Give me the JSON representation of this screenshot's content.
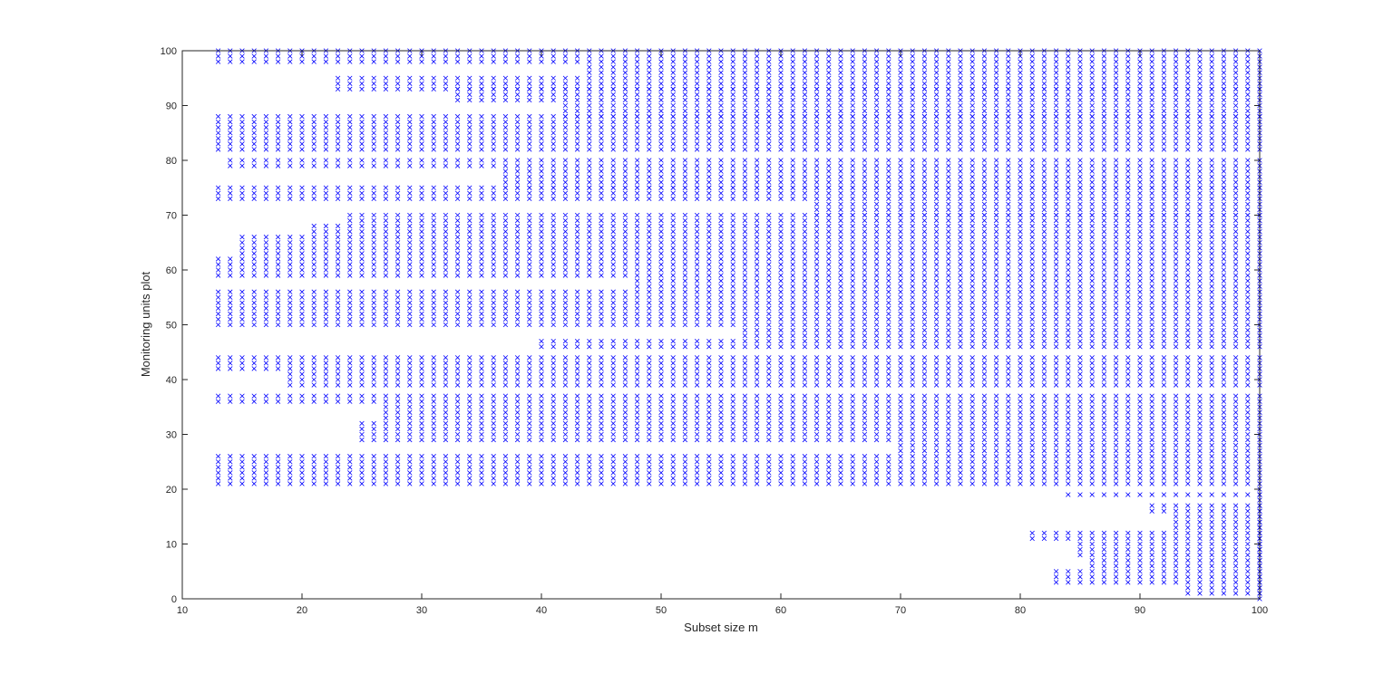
{
  "chart_data": {
    "type": "scatter",
    "title": "",
    "xlabel": "Subset size m",
    "ylabel": "Monitoring units plot",
    "xlim": [
      10,
      100
    ],
    "ylim": [
      0,
      100
    ],
    "xticks": [
      10,
      20,
      30,
      40,
      50,
      60,
      70,
      80,
      90,
      100
    ],
    "yticks": [
      0,
      10,
      20,
      30,
      40,
      50,
      60,
      70,
      80,
      90,
      100
    ],
    "grid": false,
    "marker": "x",
    "marker_color": "#0000ff",
    "axes_color": "#262626",
    "series": [
      {
        "bands": [
          {
            "y": [
              98,
              100
            ],
            "m_from": 13,
            "m_to": 100
          },
          {
            "y": [
              93,
              95
            ],
            "m_from": 23,
            "m_to": 100
          },
          {
            "y": [
              91,
              93
            ],
            "m_from": 33,
            "m_to": 100
          },
          {
            "y": [
              96,
              97
            ],
            "m_from": 44,
            "m_to": 100
          },
          {
            "y": [
              88,
              90
            ],
            "m_from": 42,
            "m_to": 100
          },
          {
            "y": [
              86,
              88
            ],
            "m_from": 13,
            "m_to": 100
          },
          {
            "y": [
              82,
              85
            ],
            "m_from": 13,
            "m_to": 100
          },
          {
            "y": [
              79,
              80
            ],
            "m_from": 14,
            "m_to": 100
          },
          {
            "y": [
              75,
              78
            ],
            "m_from": 37,
            "m_to": 100
          },
          {
            "y": [
              73,
              75
            ],
            "m_from": 13,
            "m_to": 100
          },
          {
            "y": [
              70,
              72
            ],
            "m_from": 63,
            "m_to": 100
          },
          {
            "y": [
              69,
              70
            ],
            "m_from": 24,
            "m_to": 100
          },
          {
            "y": [
              67,
              68
            ],
            "m_from": 21,
            "m_to": 100
          },
          {
            "y": [
              63,
              66
            ],
            "m_from": 15,
            "m_to": 100
          },
          {
            "y": [
              59,
              62
            ],
            "m_from": 13,
            "m_to": 100
          },
          {
            "y": [
              57,
              58
            ],
            "m_from": 48,
            "m_to": 100
          },
          {
            "y": [
              53,
              56
            ],
            "m_from": 13,
            "m_to": 100
          },
          {
            "y": [
              52,
              52
            ],
            "m_from": 13,
            "m_to": 100
          },
          {
            "y": [
              50,
              51
            ],
            "m_from": 13,
            "m_to": 100
          },
          {
            "y": [
              48,
              49
            ],
            "m_from": 57,
            "m_to": 100
          },
          {
            "y": [
              46,
              47
            ],
            "m_from": 40,
            "m_to": 100
          },
          {
            "y": [
              42,
              44
            ],
            "m_from": 13,
            "m_to": 100
          },
          {
            "y": [
              39,
              41
            ],
            "m_from": 19,
            "m_to": 100
          },
          {
            "y": [
              36,
              37
            ],
            "m_from": 13,
            "m_to": 100
          },
          {
            "y": [
              33,
              35
            ],
            "m_from": 27,
            "m_to": 100
          },
          {
            "y": [
              29,
              32
            ],
            "m_from": 25,
            "m_to": 100
          },
          {
            "y": [
              27,
              28
            ],
            "m_from": 70,
            "m_to": 100
          },
          {
            "y": [
              24,
              26
            ],
            "m_from": 13,
            "m_to": 100
          },
          {
            "y": [
              21,
              23
            ],
            "m_from": 13,
            "m_to": 100
          },
          {
            "y": [
              19,
              19
            ],
            "m_from": 84,
            "m_to": 100
          },
          {
            "y": [
              16,
              17
            ],
            "m_from": 91,
            "m_to": 100
          },
          {
            "y": [
              13,
              15
            ],
            "m_from": 93,
            "m_to": 100
          },
          {
            "y": [
              11,
              12
            ],
            "m_from": 81,
            "m_to": 100
          },
          {
            "y": [
              8,
              10
            ],
            "m_from": 85,
            "m_to": 100
          },
          {
            "y": [
              6,
              7
            ],
            "m_from": 86,
            "m_to": 100
          },
          {
            "y": [
              3,
              5
            ],
            "m_from": 83,
            "m_to": 100
          },
          {
            "y": [
              1,
              2
            ],
            "m_from": 94,
            "m_to": 100
          },
          {
            "y": [
              0,
              20
            ],
            "m_from": 100,
            "m_to": 100
          }
        ]
      }
    ]
  }
}
